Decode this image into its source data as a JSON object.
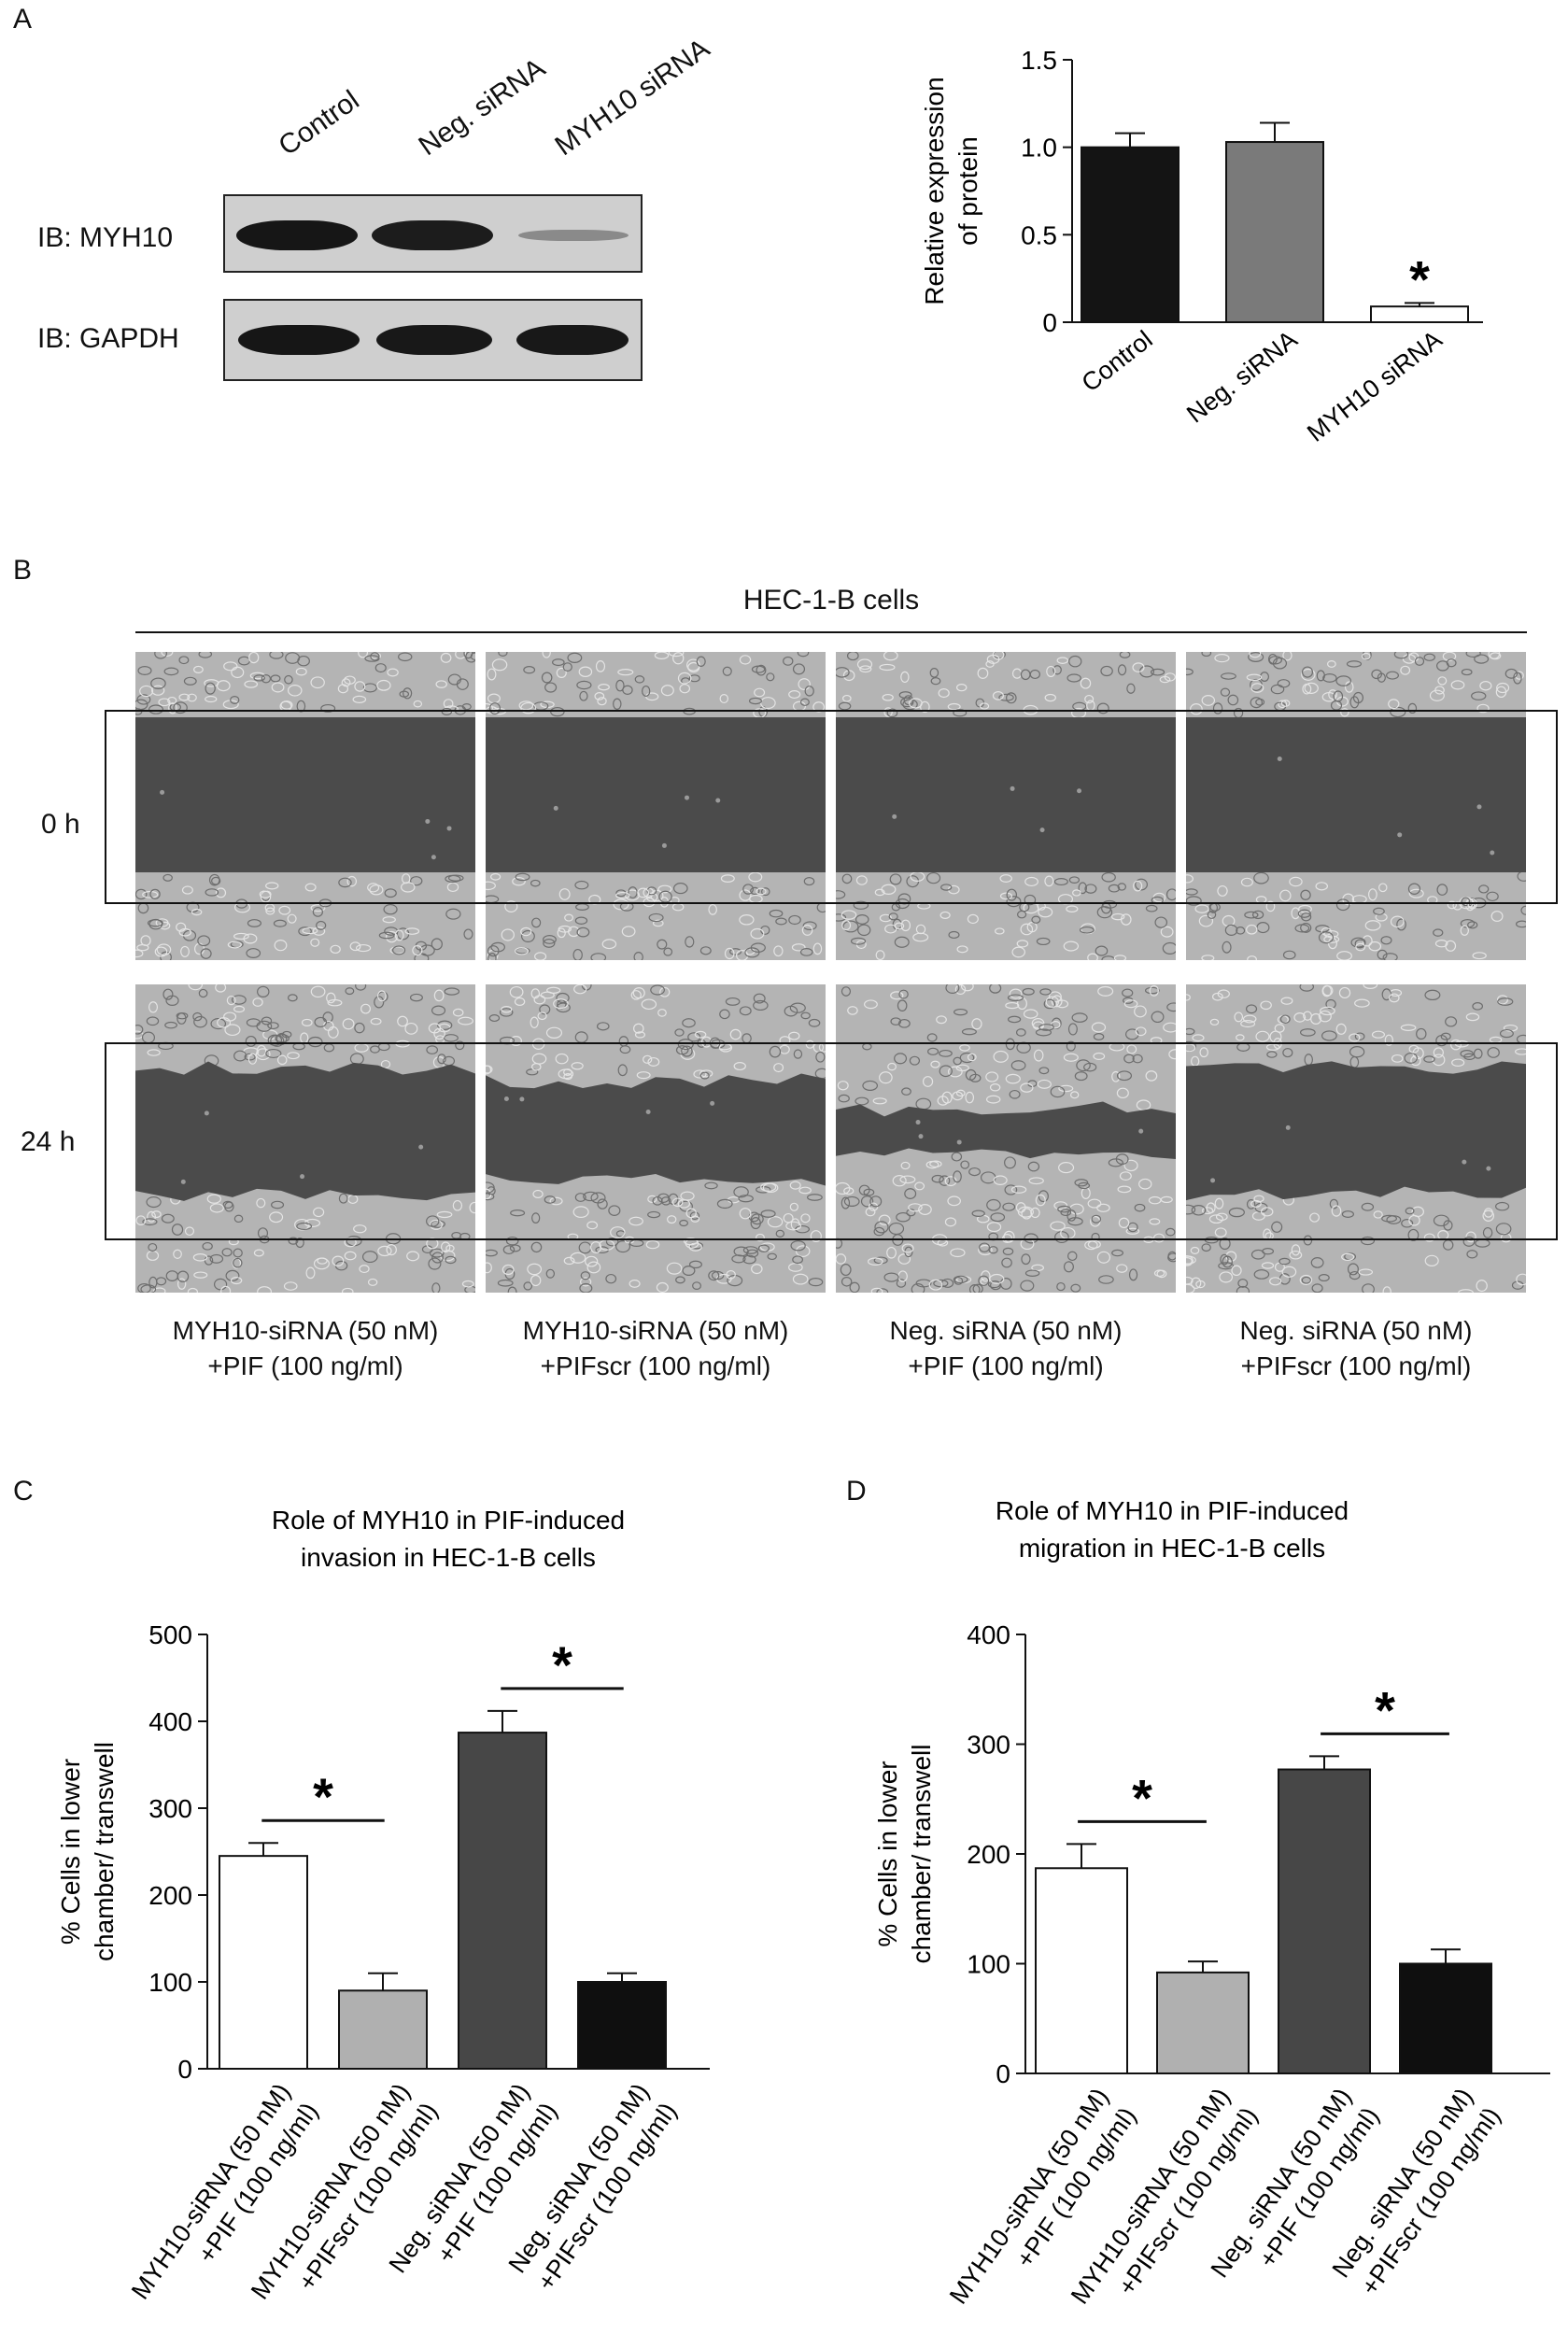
{
  "panels": {
    "a": "A",
    "b": "B",
    "c": "C",
    "d": "D"
  },
  "blot": {
    "lanes": [
      "Control",
      "Neg. siRNA",
      "MYH10 siRNA"
    ],
    "rows": [
      "IB: MYH10",
      "IB: GAPDH"
    ]
  },
  "scratch": {
    "header": "HEC-1-B cells",
    "timepoints": [
      "0 h",
      "24 h"
    ],
    "captions": [
      [
        "MYH10-siRNA (50 nM)",
        "+PIF (100 ng/ml)"
      ],
      [
        "MYH10-siRNA (50 nM)",
        "+PIFscr (100 ng/ml)"
      ],
      [
        "Neg. siRNA (50 nM)",
        "+PIF (100 ng/ml)"
      ],
      [
        "Neg. siRNA (50 nM)",
        "+PIFscr (100 ng/ml)"
      ]
    ]
  },
  "chart_data": [
    {
      "type": "bar",
      "title": "",
      "ylabel": [
        "Relative expression",
        "of protein"
      ],
      "categories": [
        "Control",
        "Neg. siRNA",
        "MYH10 siRNA"
      ],
      "values": [
        1.0,
        1.03,
        0.09
      ],
      "errors": [
        0.08,
        0.11,
        0.02
      ],
      "ylim": [
        0,
        1.5
      ],
      "yticks": [
        "0",
        "0.5",
        "1.0",
        "1.5"
      ],
      "colors": [
        "#141414",
        "#7a7a7a",
        "#ffffff"
      ],
      "significance": [
        {
          "bar": 2,
          "label": "*"
        }
      ],
      "grid": false
    },
    {
      "type": "bar",
      "title": [
        "Role of MYH10 in PIF-induced",
        "invasion in HEC-1-B cells"
      ],
      "ylabel": [
        "% Cells in lower",
        "chamber/ transwell"
      ],
      "categories": [
        [
          "MYH10-siRNA (50 nM)",
          "+PIF (100 ng/ml)"
        ],
        [
          "MYH10-siRNA (50 nM)",
          "+PIFscr (100 ng/ml)"
        ],
        [
          "Neg. siRNA (50 nM)",
          "+PIF (100 ng/ml)"
        ],
        [
          "Neg. siRNA (50 nM)",
          "+PIFscr (100 ng/ml)"
        ]
      ],
      "values": [
        245,
        90,
        387,
        100
      ],
      "errors": [
        15,
        20,
        25,
        10
      ],
      "ylim": [
        0,
        500
      ],
      "yticks": [
        "0",
        "100",
        "200",
        "300",
        "400",
        "500"
      ],
      "colors": [
        "#ffffff",
        "#b0b0b0",
        "#474747",
        "#0f0f0f"
      ],
      "significance": [
        {
          "from": 0,
          "to": 1,
          "label": "*"
        },
        {
          "from": 2,
          "to": 3,
          "label": "*"
        }
      ],
      "grid": false
    },
    {
      "type": "bar",
      "title": [
        "Role of MYH10 in PIF-induced",
        "migration in HEC-1-B cells"
      ],
      "ylabel": [
        "% Cells in lower",
        "chamber/ transwell"
      ],
      "categories": [
        [
          "MYH10-siRNA (50 nM)",
          "+PIF (100 ng/ml)"
        ],
        [
          "MYH10-siRNA (50 nM)",
          "+PIFscr (100 ng/ml)"
        ],
        [
          "Neg. siRNA (50 nM)",
          "+PIF (100 ng/ml)"
        ],
        [
          "Neg. siRNA (50 nM)",
          "+PIFscr (100 ng/ml)"
        ]
      ],
      "values": [
        187,
        92,
        277,
        100
      ],
      "errors": [
        22,
        10,
        12,
        13
      ],
      "ylim": [
        0,
        400
      ],
      "yticks": [
        "0",
        "100",
        "200",
        "300",
        "400"
      ],
      "colors": [
        "#ffffff",
        "#b0b0b0",
        "#474747",
        "#0f0f0f"
      ],
      "significance": [
        {
          "from": 0,
          "to": 1,
          "label": "*"
        },
        {
          "from": 2,
          "to": 3,
          "label": "*"
        }
      ],
      "grid": false
    }
  ]
}
